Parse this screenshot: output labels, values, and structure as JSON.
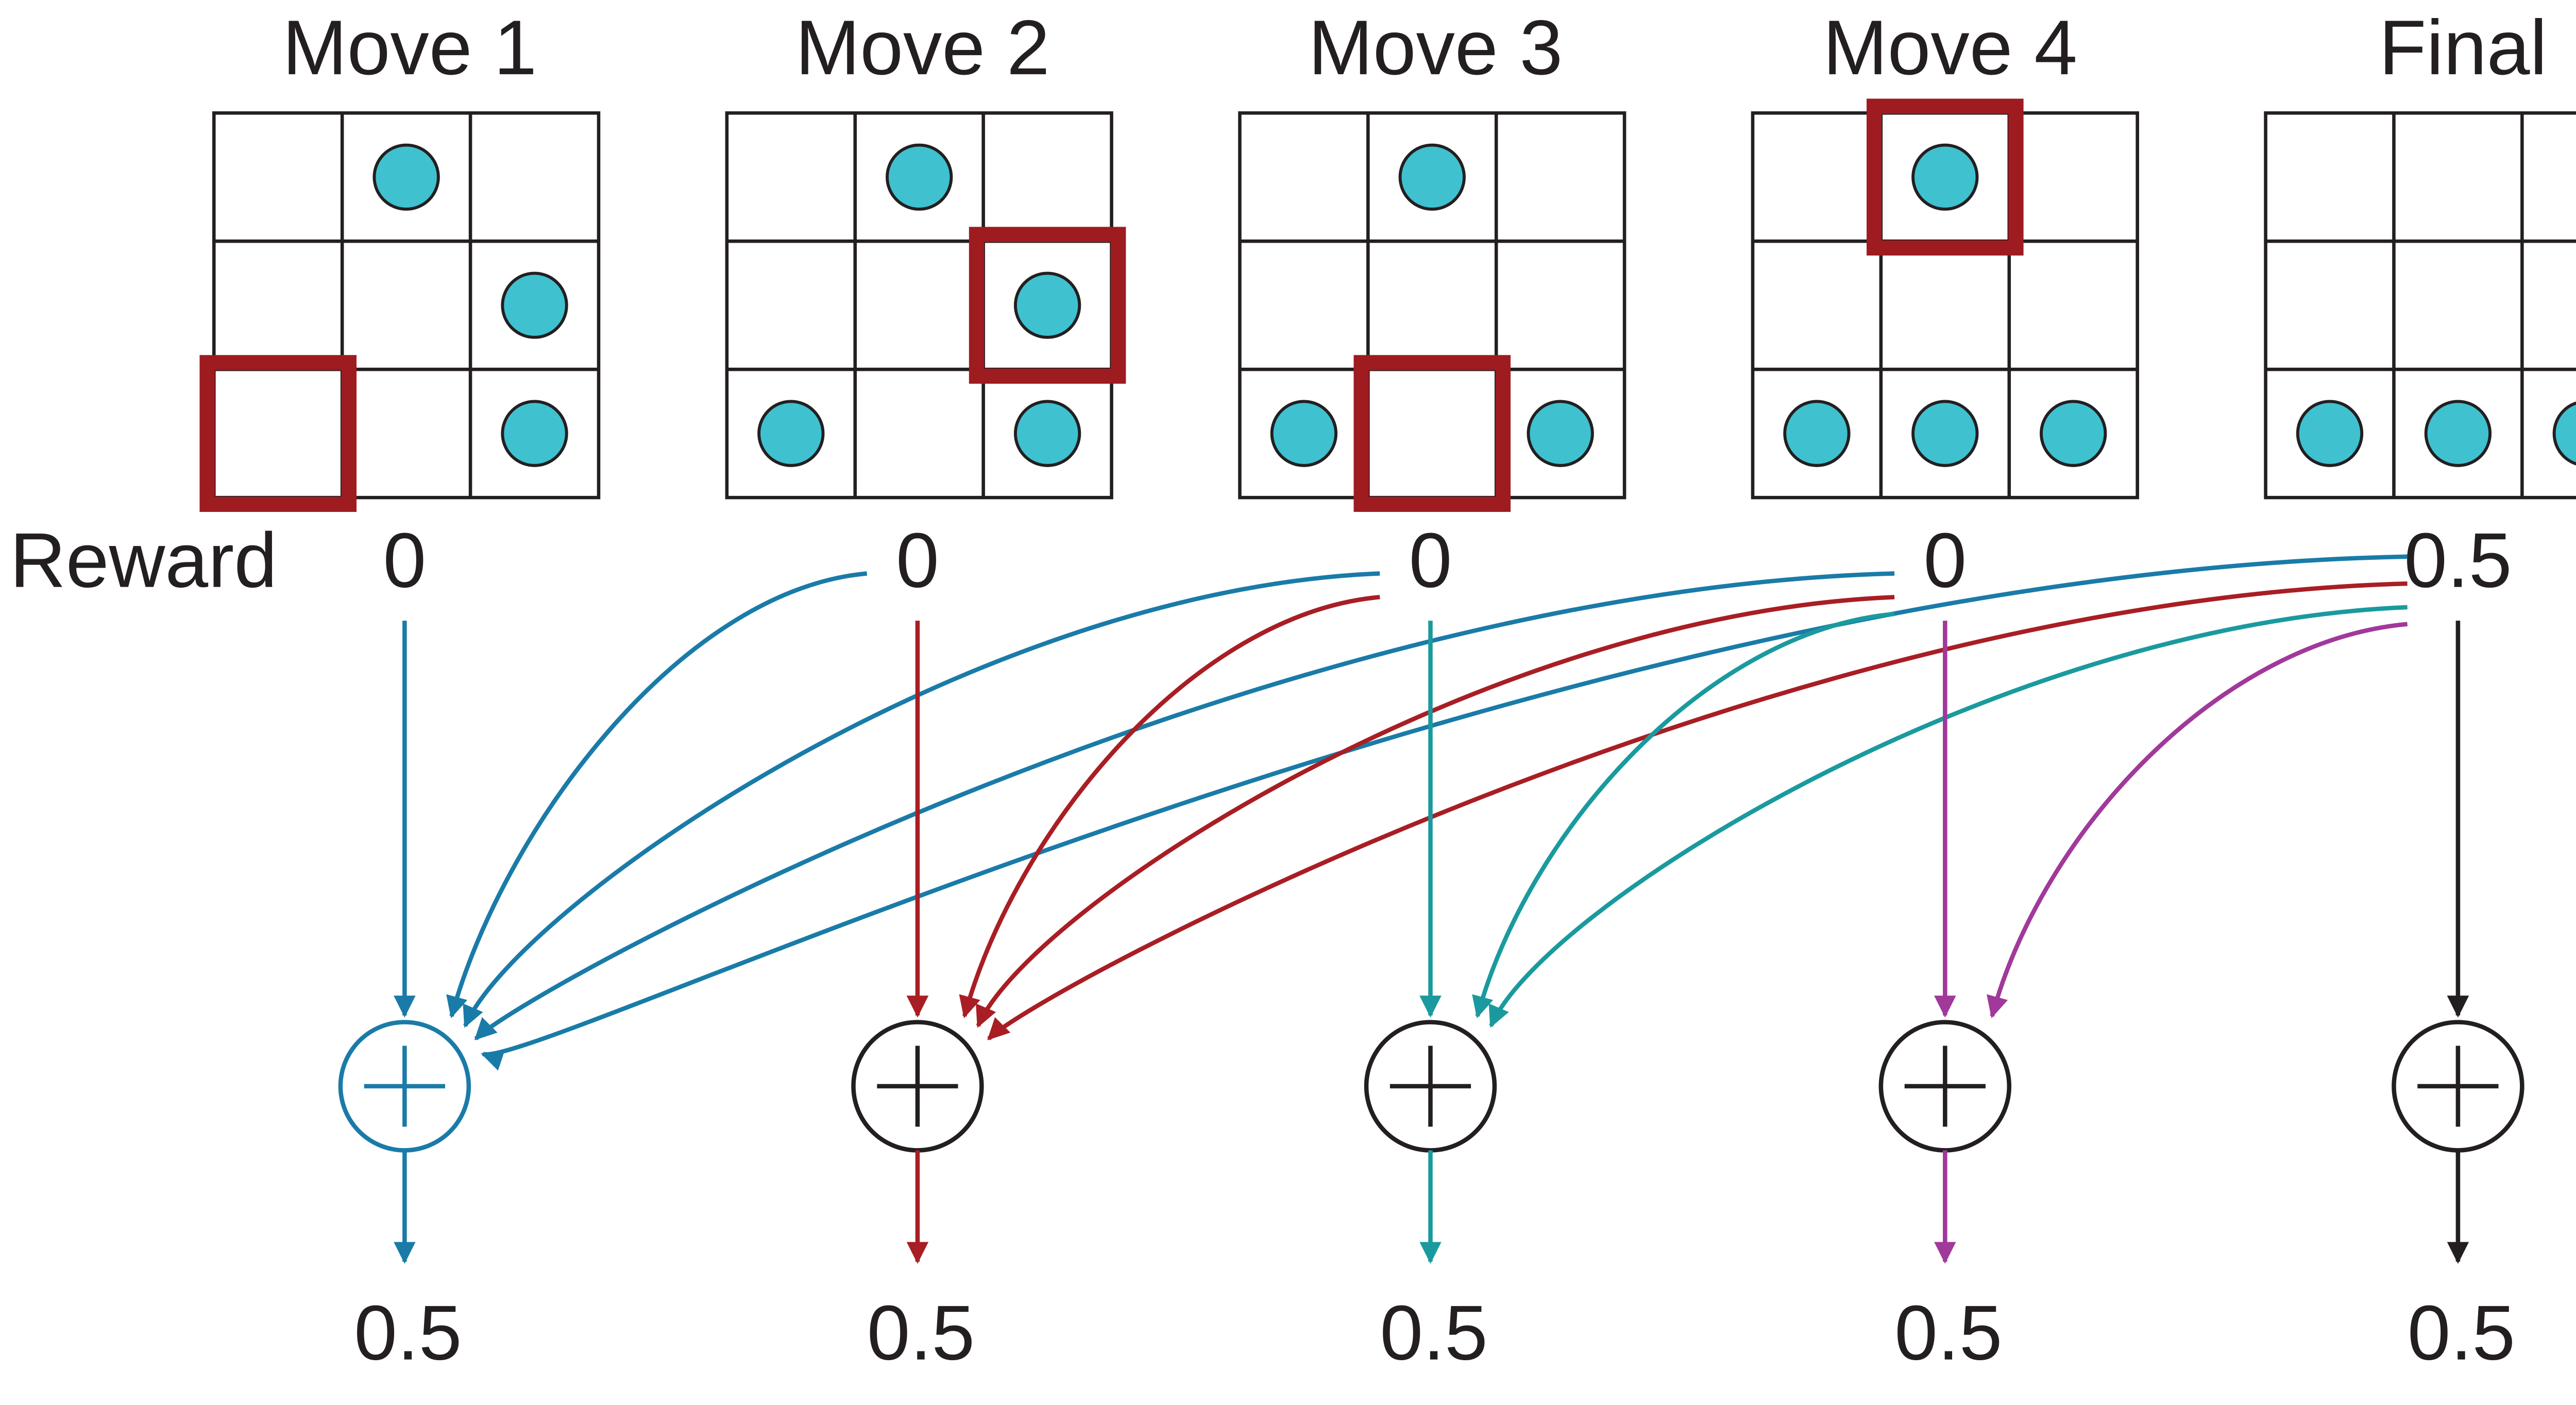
{
  "reward_label": "Reward",
  "colors": {
    "ink": "#231f20",
    "grid": "#231f20",
    "dot": "#3fc1d0",
    "highlight": "#9e1b20",
    "blue": "#1a7ba8",
    "red": "#a81e24",
    "teal": "#1a9a9e",
    "purple": "#a0399a",
    "black": "#231f20"
  },
  "columns": [
    {
      "title": "Move 1",
      "reward": "0",
      "return": "0.5",
      "sum_color": "blue",
      "dots": [
        [
          0,
          1
        ],
        [
          1,
          2
        ],
        [
          2,
          2
        ]
      ],
      "highlight": [
        2,
        0
      ]
    },
    {
      "title": "Move 2",
      "reward": "0",
      "return": "0.5",
      "sum_color": "black",
      "dots": [
        [
          0,
          1
        ],
        [
          1,
          2
        ],
        [
          2,
          0
        ],
        [
          2,
          2
        ]
      ],
      "highlight": [
        1,
        2
      ]
    },
    {
      "title": "Move 3",
      "reward": "0",
      "return": "0.5",
      "sum_color": "black",
      "dots": [
        [
          0,
          1
        ],
        [
          2,
          0
        ],
        [
          2,
          2
        ]
      ],
      "highlight": [
        2,
        1
      ]
    },
    {
      "title": "Move 4",
      "reward": "0",
      "return": "0.5",
      "sum_color": "black",
      "dots": [
        [
          0,
          1
        ],
        [
          2,
          0
        ],
        [
          2,
          1
        ],
        [
          2,
          2
        ]
      ],
      "highlight": [
        0,
        1
      ]
    },
    {
      "title": "Final",
      "reward": "0.5",
      "return": "0.5",
      "sum_color": "black",
      "dots": [
        [
          2,
          0
        ],
        [
          2,
          1
        ],
        [
          2,
          2
        ]
      ],
      "highlight": null
    }
  ],
  "flows": [
    {
      "from": 0,
      "to": 0,
      "color": "blue"
    },
    {
      "from": 1,
      "to": 0,
      "color": "blue"
    },
    {
      "from": 2,
      "to": 0,
      "color": "blue"
    },
    {
      "from": 3,
      "to": 0,
      "color": "blue"
    },
    {
      "from": 4,
      "to": 0,
      "color": "blue"
    },
    {
      "from": 1,
      "to": 1,
      "color": "red"
    },
    {
      "from": 2,
      "to": 1,
      "color": "red"
    },
    {
      "from": 3,
      "to": 1,
      "color": "red"
    },
    {
      "from": 4,
      "to": 1,
      "color": "red"
    },
    {
      "from": 2,
      "to": 2,
      "color": "teal"
    },
    {
      "from": 3,
      "to": 2,
      "color": "teal"
    },
    {
      "from": 4,
      "to": 2,
      "color": "teal"
    },
    {
      "from": 3,
      "to": 3,
      "color": "purple"
    },
    {
      "from": 4,
      "to": 3,
      "color": "purple"
    },
    {
      "from": 4,
      "to": 4,
      "color": "black"
    }
  ]
}
